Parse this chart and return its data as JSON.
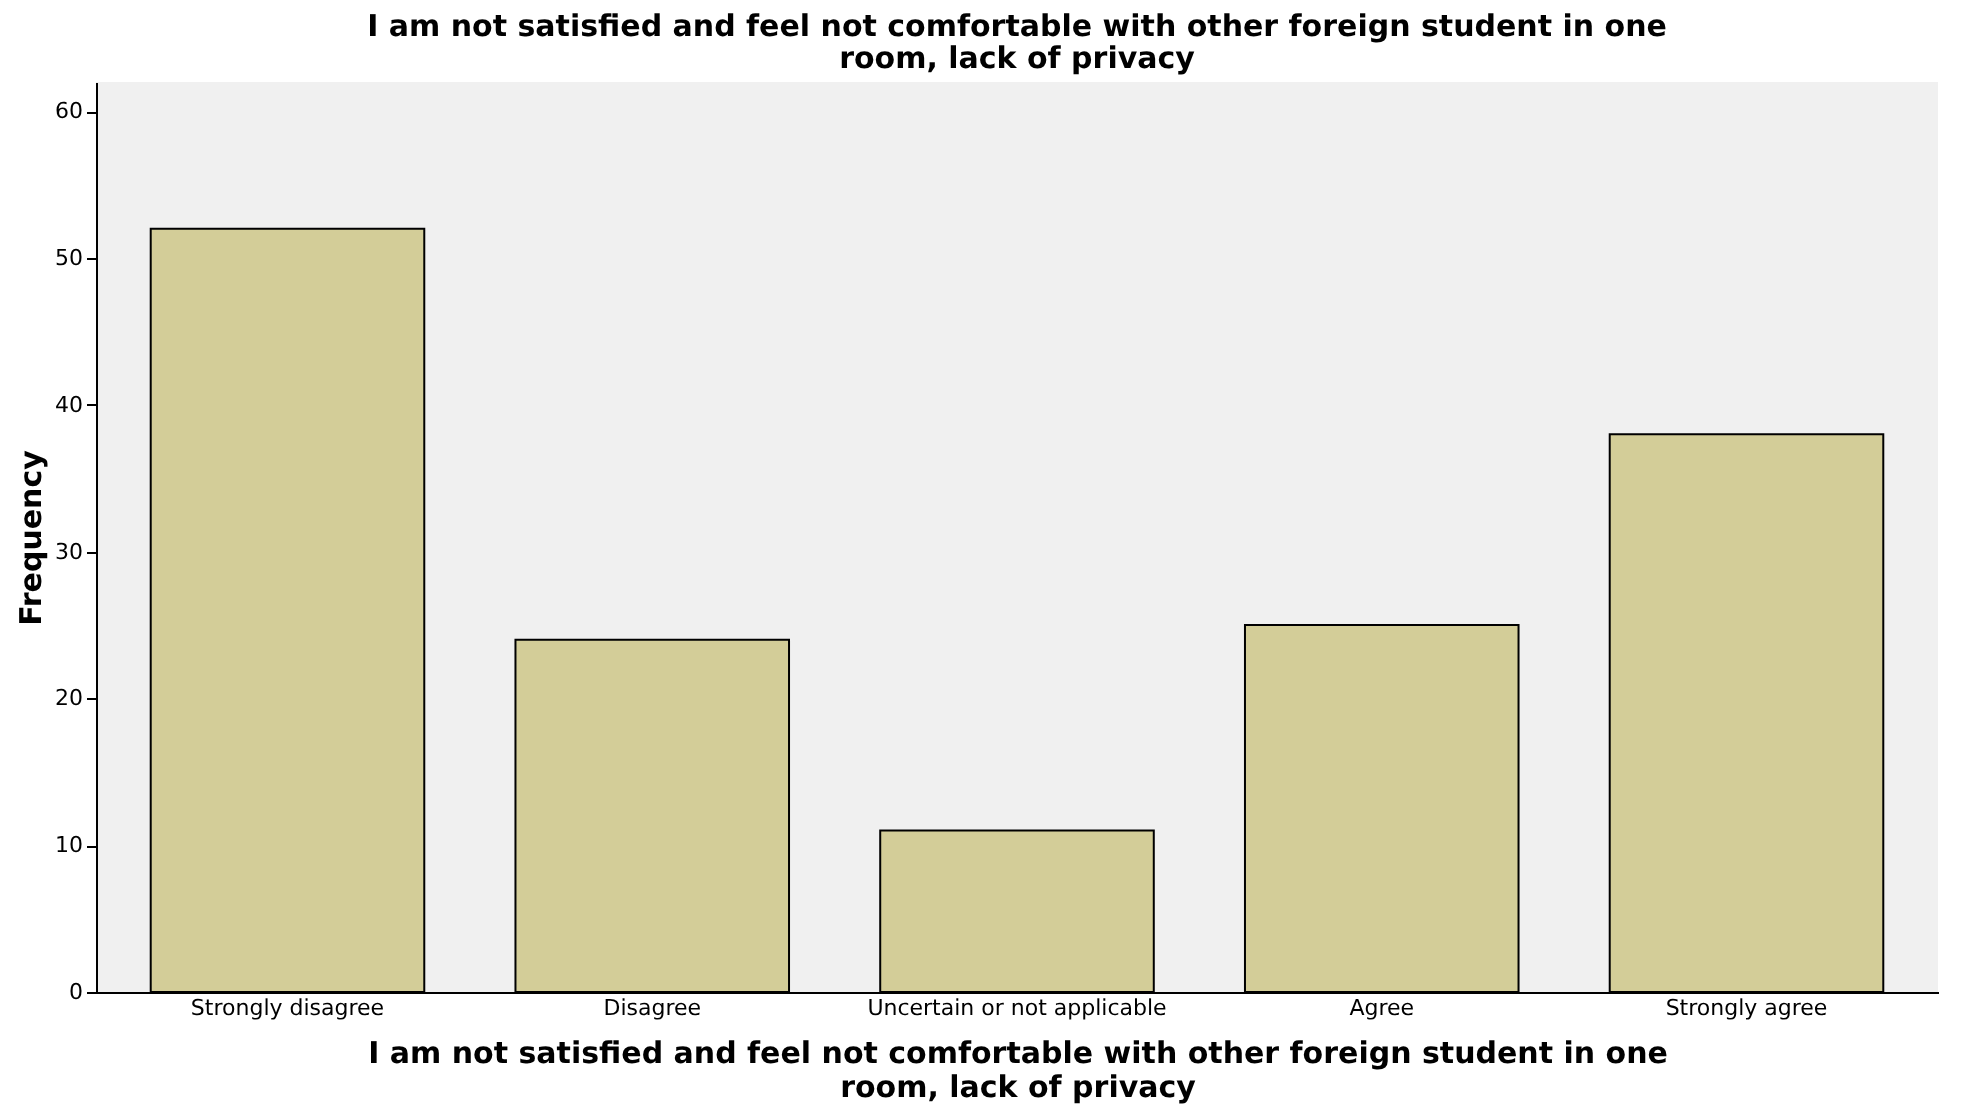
{
  "chart_data": {
    "type": "bar",
    "title": "I am not satisfied and feel not comfortable with other foreign student in one room, lack of privacy",
    "xlabel": "I am not satisfied and feel not comfortable with other foreign student in one room, lack of privacy",
    "ylabel": "Frequency",
    "categories": [
      "Strongly disagree",
      "Disagree",
      "Uncertain or not applicable",
      "Agree",
      "Strongly agree"
    ],
    "values": [
      52,
      24,
      11,
      25,
      38
    ],
    "color": "#d3cd98",
    "ylim": [
      0,
      62
    ],
    "yticks": [
      0,
      10,
      20,
      30,
      40,
      50,
      60
    ],
    "grid": false
  }
}
